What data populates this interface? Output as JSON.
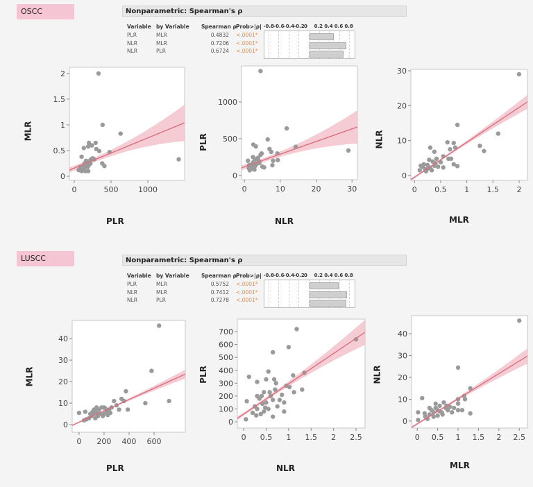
{
  "groups": [
    {
      "label": "OSCC",
      "table": {
        "title": "Nonparametric: Spearman's ρ",
        "columns": [
          "Variable",
          "by Variable",
          "Spearman ρ",
          "Prob>|ρ|"
        ],
        "bar_ticks": [
          "-0.8",
          "-0.6",
          "-0.4",
          "-0.2",
          "0",
          "0.2",
          "0.4",
          "0.6",
          "0.8"
        ],
        "rows": [
          {
            "variable": "PLR",
            "by": "MLR",
            "rho": "0.4832",
            "p": "<.0001*",
            "rho_value": 0.4832
          },
          {
            "variable": "NLR",
            "by": "MLR",
            "rho": "0.7206",
            "p": "<.0001*",
            "rho_value": 0.7206
          },
          {
            "variable": "NLR",
            "by": "PLR",
            "rho": "0.6724",
            "p": "<.0001*",
            "rho_value": 0.6724
          }
        ]
      }
    },
    {
      "label": "LUSCC",
      "table": {
        "title": "Nonparametric: Spearman's ρ",
        "columns": [
          "Variable",
          "by Variable",
          "Spearman ρ",
          "Prob>|ρ|"
        ],
        "bar_ticks": [
          "-0.8",
          "-0.6",
          "-0.4",
          "-0.2",
          "0",
          "0.2",
          "0.4",
          "0.6",
          "0.8"
        ],
        "rows": [
          {
            "variable": "PLR",
            "by": "MLR",
            "rho": "0.5752",
            "p": "<.0001*",
            "rho_value": 0.5752
          },
          {
            "variable": "NLR",
            "by": "MLR",
            "rho": "0.7412",
            "p": "<.0001*",
            "rho_value": 0.7412
          },
          {
            "variable": "NLR",
            "by": "PLR",
            "rho": "0.7278",
            "p": "<.0001*",
            "rho_value": 0.7278
          }
        ]
      }
    }
  ],
  "colors": {
    "points": "#9a9a9a",
    "fit_line": "#d9707f",
    "ci_band": "#f4c3cc",
    "label_bg": "#f6c5d3",
    "p_value": "#e0905a",
    "bars": "#cfcfcf"
  },
  "chart_data": [
    {
      "type": "scatter",
      "group": "OSCC",
      "xlabel": "PLR",
      "ylabel": "MLR",
      "xlim": [
        -66,
        1500
      ],
      "ylim": [
        -0.08,
        2.12
      ],
      "xticks": [
        0,
        500,
        1000
      ],
      "yticks": [
        0,
        0.5,
        1,
        1.5,
        2
      ],
      "fit": {
        "x0": -66,
        "y0": 0.12,
        "x1": 1500,
        "y1": 1.04
      },
      "ci_at_xmax": [
        0.68,
        1.39
      ],
      "points": [
        [
          330,
          2.0
        ],
        [
          385,
          1.0
        ],
        [
          630,
          0.83
        ],
        [
          1420,
          0.33
        ],
        [
          200,
          0.65
        ],
        [
          290,
          0.65
        ],
        [
          190,
          0.58
        ],
        [
          240,
          0.6
        ],
        [
          130,
          0.55
        ],
        [
          300,
          0.53
        ],
        [
          340,
          0.49
        ],
        [
          480,
          0.47
        ],
        [
          100,
          0.38
        ],
        [
          380,
          0.25
        ],
        [
          410,
          0.2
        ],
        [
          270,
          0.33
        ],
        [
          230,
          0.33
        ],
        [
          160,
          0.3
        ],
        [
          140,
          0.25
        ],
        [
          120,
          0.2
        ],
        [
          90,
          0.15
        ],
        [
          110,
          0.12
        ],
        [
          150,
          0.1
        ],
        [
          180,
          0.18
        ],
        [
          200,
          0.22
        ],
        [
          170,
          0.28
        ],
        [
          210,
          0.3
        ],
        [
          60,
          0.12
        ],
        [
          80,
          0.18
        ],
        [
          130,
          0.15
        ],
        [
          150,
          0.2
        ],
        [
          190,
          0.1
        ],
        [
          220,
          0.25
        ],
        [
          100,
          0.1
        ],
        [
          250,
          0.35
        ]
      ]
    },
    {
      "type": "scatter",
      "group": "OSCC",
      "xlabel": "NLR",
      "ylabel": "PLR",
      "xlim": [
        -0.8,
        31.5
      ],
      "ylim": [
        -57,
        1490
      ],
      "xticks": [
        0,
        10,
        20,
        30
      ],
      "yticks": [
        0,
        500,
        1000
      ],
      "fit": {
        "x0": -0.8,
        "y0": 104,
        "x1": 31.5,
        "y1": 660
      },
      "ci_at_xmax": [
        425,
        877
      ],
      "points": [
        [
          4.5,
          1420
        ],
        [
          11.8,
          640
        ],
        [
          14.3,
          390
        ],
        [
          29,
          340
        ],
        [
          6.5,
          490
        ],
        [
          2.5,
          420
        ],
        [
          3.2,
          395
        ],
        [
          7,
          360
        ],
        [
          7.5,
          320
        ],
        [
          9.2,
          300
        ],
        [
          9.3,
          210
        ],
        [
          8,
          200
        ],
        [
          7.8,
          140
        ],
        [
          5.5,
          110
        ],
        [
          4.5,
          280
        ],
        [
          4.8,
          300
        ],
        [
          1,
          200
        ],
        [
          1.2,
          100
        ],
        [
          1.5,
          70
        ],
        [
          2,
          150
        ],
        [
          2.5,
          180
        ],
        [
          3,
          220
        ],
        [
          3.5,
          160
        ],
        [
          4,
          200
        ],
        [
          2.2,
          120
        ],
        [
          1.8,
          90
        ],
        [
          3,
          130
        ],
        [
          3.8,
          240
        ],
        [
          1.3,
          140
        ],
        [
          2.8,
          80
        ],
        [
          4.2,
          170
        ],
        [
          5,
          120
        ],
        [
          2.4,
          250
        ]
      ]
    },
    {
      "type": "scatter",
      "group": "OSCC",
      "xlabel": "MLR",
      "ylabel": "NLR",
      "xlim": [
        -0.07,
        2.16
      ],
      "ylim": [
        -1.4,
        30.4
      ],
      "xticks": [
        0,
        0.5,
        1,
        1.5,
        2
      ],
      "yticks": [
        0,
        10,
        20,
        30
      ],
      "fit": {
        "x0": -0.07,
        "y0": -1.2,
        "x1": 2.16,
        "y1": 21.1
      },
      "ci_at_xmax": [
        19,
        23
      ],
      "points": [
        [
          2,
          29
        ],
        [
          0.82,
          14.5
        ],
        [
          1.6,
          12
        ],
        [
          1.25,
          8.5
        ],
        [
          1.33,
          7
        ],
        [
          0.63,
          9.5
        ],
        [
          0.75,
          9.3
        ],
        [
          0.3,
          8
        ],
        [
          0.38,
          6.8
        ],
        [
          0.68,
          7.5
        ],
        [
          0.78,
          8
        ],
        [
          0.7,
          4.8
        ],
        [
          0.65,
          4.8
        ],
        [
          0.75,
          3.2
        ],
        [
          0.82,
          2.7
        ],
        [
          0.55,
          2.3
        ],
        [
          0.55,
          5.5
        ],
        [
          0.1,
          1.5
        ],
        [
          0.15,
          2.5
        ],
        [
          0.2,
          1.8
        ],
        [
          0.25,
          3
        ],
        [
          0.3,
          2.2
        ],
        [
          0.35,
          4
        ],
        [
          0.4,
          3.5
        ],
        [
          0.45,
          2.5
        ],
        [
          0.28,
          4.5
        ],
        [
          0.18,
          3.2
        ],
        [
          0.12,
          2.8
        ],
        [
          0.22,
          1.2
        ],
        [
          0.33,
          1.5
        ],
        [
          0.42,
          4.8
        ],
        [
          0.5,
          3.8
        ],
        [
          0.38,
          2.8
        ],
        [
          0.26,
          2
        ]
      ]
    },
    {
      "type": "scatter",
      "group": "LUSCC",
      "xlabel": "PLR",
      "ylabel": "MLR",
      "xlim": [
        -55,
        850
      ],
      "ylim": [
        -3.5,
        48.4
      ],
      "xticks": [
        0,
        200,
        400,
        600
      ],
      "yticks": [
        0,
        10,
        20,
        30,
        40
      ],
      "fit": {
        "x0": -55,
        "y0": -0.3,
        "x1": 850,
        "y1": 23.5
      },
      "ci_at_xmax": [
        21.6,
        25.8
      ],
      "points": [
        [
          640,
          46
        ],
        [
          580,
          25
        ],
        [
          720,
          11
        ],
        [
          530,
          10
        ],
        [
          375,
          15.5
        ],
        [
          390,
          7
        ],
        [
          340,
          12
        ],
        [
          360,
          11
        ],
        [
          280,
          11
        ],
        [
          300,
          9
        ],
        [
          0,
          5.5
        ],
        [
          50,
          6
        ],
        [
          40,
          2
        ],
        [
          80,
          3
        ],
        [
          100,
          4
        ],
        [
          120,
          5
        ],
        [
          140,
          6
        ],
        [
          160,
          7
        ],
        [
          180,
          8
        ],
        [
          200,
          5
        ],
        [
          220,
          6
        ],
        [
          240,
          7
        ],
        [
          260,
          8
        ],
        [
          150,
          4
        ],
        [
          130,
          3
        ],
        [
          90,
          5
        ],
        [
          110,
          6
        ],
        [
          170,
          5
        ],
        [
          190,
          4
        ],
        [
          210,
          7.5
        ],
        [
          230,
          4.5
        ],
        [
          250,
          5.5
        ],
        [
          320,
          7
        ],
        [
          60,
          2.5
        ],
        [
          140,
          8
        ],
        [
          200,
          8
        ],
        [
          120,
          7
        ]
      ]
    },
    {
      "type": "scatter",
      "group": "LUSCC",
      "xlabel": "NLR",
      "ylabel": "PLR",
      "xlim": [
        -0.14,
        2.7
      ],
      "ylim": [
        -48,
        797
      ],
      "xticks": [
        0,
        0.5,
        1,
        1.5,
        2,
        2.5
      ],
      "yticks": [
        0,
        100,
        200,
        300,
        400,
        500,
        600,
        700
      ],
      "fit": {
        "x0": -0.14,
        "y0": 27,
        "x1": 2.7,
        "y1": 695
      },
      "ci_at_xmax": [
        592,
        786
      ],
      "points": [
        [
          1.18,
          720
        ],
        [
          1.0,
          580
        ],
        [
          0.65,
          540
        ],
        [
          2.5,
          640
        ],
        [
          1.35,
          380
        ],
        [
          1.1,
          360
        ],
        [
          1.3,
          250
        ],
        [
          1.12,
          230
        ],
        [
          0.12,
          350
        ],
        [
          0.05,
          20
        ],
        [
          0.07,
          160
        ],
        [
          0.3,
          310
        ],
        [
          0.55,
          390
        ],
        [
          0.9,
          80
        ],
        [
          0.65,
          40
        ],
        [
          0.5,
          330
        ],
        [
          0.68,
          330
        ],
        [
          0.72,
          300
        ],
        [
          0.95,
          280
        ],
        [
          1.02,
          270
        ],
        [
          0.85,
          210
        ],
        [
          0.9,
          150
        ],
        [
          0.8,
          170
        ],
        [
          0.75,
          120
        ],
        [
          0.4,
          200
        ],
        [
          0.45,
          230
        ],
        [
          0.35,
          180
        ],
        [
          0.3,
          100
        ],
        [
          0.25,
          120
        ],
        [
          0.5,
          150
        ],
        [
          0.55,
          100
        ],
        [
          0.6,
          200
        ],
        [
          0.45,
          80
        ],
        [
          0.38,
          60
        ],
        [
          0.2,
          70
        ],
        [
          0.42,
          140
        ],
        [
          0.58,
          230
        ],
        [
          0.65,
          170
        ],
        [
          0.3,
          200
        ],
        [
          0.48,
          110
        ],
        [
          0.28,
          50
        ],
        [
          0.7,
          250
        ]
      ]
    },
    {
      "type": "scatter",
      "group": "LUSCC",
      "xlabel": "MLR",
      "ylabel": "NLR",
      "xlim": [
        -0.14,
        2.7
      ],
      "ylim": [
        -3.2,
        48.3
      ],
      "xticks": [
        0,
        0.5,
        1,
        1.5,
        2,
        2.5
      ],
      "yticks": [
        0,
        10,
        20,
        30,
        40
      ],
      "fit": {
        "x0": -0.14,
        "y0": -2.9,
        "x1": 2.7,
        "y1": 29.8
      },
      "ci_at_xmax": [
        26,
        33
      ],
      "points": [
        [
          2.5,
          46
        ],
        [
          1.0,
          24.5
        ],
        [
          1.3,
          15
        ],
        [
          1.15,
          11.5
        ],
        [
          1.17,
          10
        ],
        [
          1.0,
          10
        ],
        [
          1.0,
          8
        ],
        [
          0.12,
          10.5
        ],
        [
          1.3,
          3.5
        ],
        [
          1.1,
          5
        ],
        [
          1.0,
          5
        ],
        [
          0.02,
          4
        ],
        [
          0.02,
          0.5
        ],
        [
          0.65,
          8.5
        ],
        [
          0.45,
          8
        ],
        [
          0.2,
          2
        ],
        [
          0.3,
          3
        ],
        [
          0.35,
          5
        ],
        [
          0.4,
          4
        ],
        [
          0.45,
          6
        ],
        [
          0.5,
          5
        ],
        [
          0.55,
          7
        ],
        [
          0.6,
          4
        ],
        [
          0.7,
          6
        ],
        [
          0.75,
          5
        ],
        [
          0.8,
          6.5
        ],
        [
          0.85,
          4
        ],
        [
          0.9,
          6
        ],
        [
          0.25,
          1
        ],
        [
          0.3,
          6
        ],
        [
          0.5,
          2.5
        ],
        [
          0.62,
          3
        ],
        [
          0.4,
          2
        ],
        [
          0.18,
          3.5
        ],
        [
          0.72,
          7
        ],
        [
          0.55,
          4.5
        ]
      ]
    }
  ]
}
